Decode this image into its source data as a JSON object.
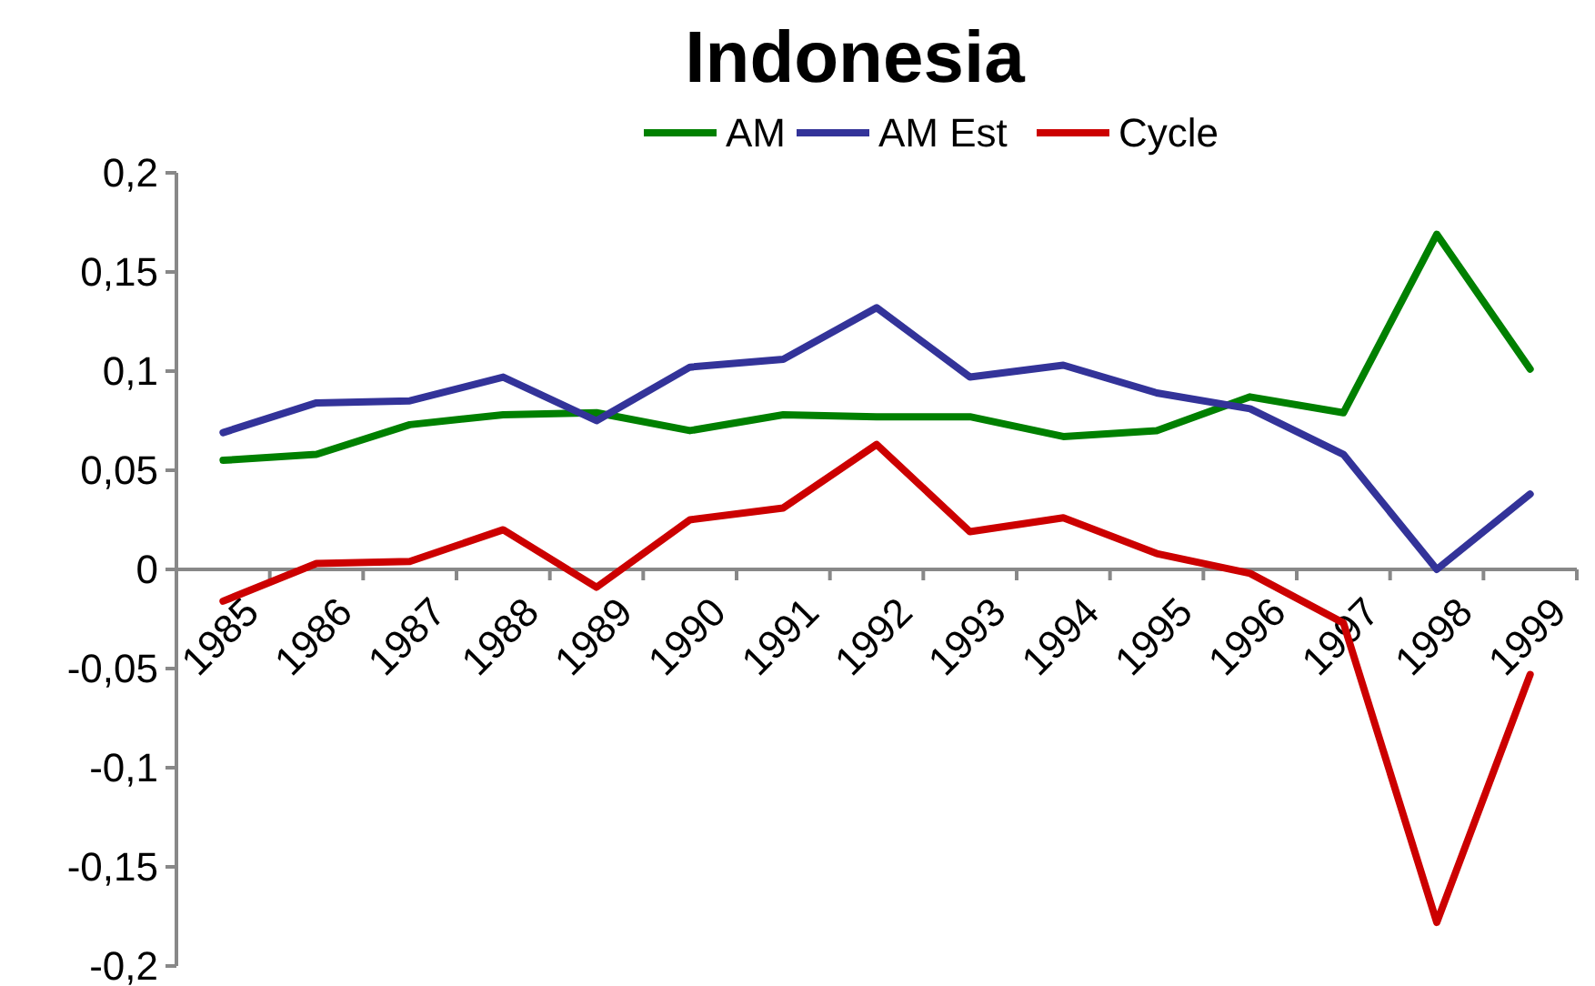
{
  "chart_data": {
    "type": "line",
    "title": "Indonesia",
    "categories": [
      "1985",
      "1986",
      "1987",
      "1988",
      "1989",
      "1990",
      "1991",
      "1992",
      "1993",
      "1994",
      "1995",
      "1996",
      "1997",
      "1998",
      "1999"
    ],
    "series": [
      {
        "name": "AM",
        "color": "#008000",
        "values": [
          0.055,
          0.058,
          0.073,
          0.078,
          0.079,
          0.07,
          0.078,
          0.077,
          0.077,
          0.067,
          0.07,
          0.087,
          0.079,
          0.169,
          0.101
        ]
      },
      {
        "name": "AM Est",
        "color": "#333399",
        "values": [
          0.069,
          0.084,
          0.085,
          0.097,
          0.075,
          0.102,
          0.106,
          0.132,
          0.097,
          0.103,
          0.089,
          0.081,
          0.058,
          0.0,
          0.038
        ]
      },
      {
        "name": "Cycle",
        "color": "#cc0000",
        "values": [
          -0.016,
          0.003,
          0.004,
          0.02,
          -0.009,
          0.025,
          0.031,
          0.063,
          0.019,
          0.026,
          0.008,
          -0.002,
          -0.027,
          -0.178,
          -0.053
        ]
      }
    ],
    "ylim": [
      -0.2,
      0.2
    ],
    "yticks": [
      {
        "value": 0.2,
        "label": "0,2"
      },
      {
        "value": 0.15,
        "label": "0,15"
      },
      {
        "value": 0.1,
        "label": "0,1"
      },
      {
        "value": 0.05,
        "label": "0,05"
      },
      0,
      {
        "value": -0.05,
        "label": "-0,05"
      },
      {
        "value": -0.1,
        "label": "-0,1"
      },
      {
        "value": -0.15,
        "label": "-0,15"
      },
      {
        "value": -0.2,
        "label": "-0,2"
      }
    ],
    "grid": false,
    "legend": "top",
    "marker": "none",
    "line_style": "solid"
  }
}
